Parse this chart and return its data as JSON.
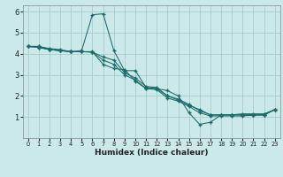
{
  "title": "",
  "xlabel": "Humidex (Indice chaleur)",
  "background_color": "#cce9e9",
  "line_color": "#1a6b6b",
  "grid_color": "#aacccc",
  "xlim": [
    -0.5,
    23.5
  ],
  "ylim": [
    0,
    6.3
  ],
  "xticks": [
    0,
    1,
    2,
    3,
    4,
    5,
    6,
    7,
    8,
    9,
    10,
    11,
    12,
    13,
    14,
    15,
    16,
    17,
    18,
    19,
    20,
    21,
    22,
    23
  ],
  "yticks": [
    1,
    2,
    3,
    4,
    5,
    6
  ],
  "series": [
    {
      "x": [
        0,
        1,
        2,
        3,
        4,
        5,
        6,
        7,
        8,
        9,
        10,
        11,
        12,
        13,
        14,
        15,
        16,
        17,
        18,
        19,
        20,
        21,
        22,
        23
      ],
      "y": [
        4.35,
        4.35,
        4.25,
        4.2,
        4.1,
        4.15,
        5.85,
        5.9,
        4.15,
        3.2,
        3.2,
        2.4,
        2.35,
        2.25,
        2.0,
        1.2,
        0.65,
        0.75,
        1.1,
        1.1,
        1.15,
        1.15,
        1.15,
        1.35
      ]
    },
    {
      "x": [
        0,
        1,
        2,
        3,
        4,
        5,
        6,
        7,
        8,
        9,
        10,
        11,
        12,
        13,
        14,
        15,
        16,
        17,
        18,
        19,
        20,
        21,
        22,
        23
      ],
      "y": [
        4.35,
        4.35,
        4.2,
        4.15,
        4.1,
        4.1,
        4.1,
        3.5,
        3.3,
        3.25,
        2.7,
        2.35,
        2.35,
        2.0,
        1.8,
        1.55,
        1.35,
        1.1,
        1.1,
        1.1,
        1.1,
        1.1,
        1.1,
        1.35
      ]
    },
    {
      "x": [
        0,
        1,
        2,
        3,
        4,
        5,
        6,
        7,
        8,
        9,
        10,
        11,
        12,
        13,
        14,
        15,
        16,
        17,
        18,
        19,
        20,
        21,
        22,
        23
      ],
      "y": [
        4.35,
        4.3,
        4.2,
        4.15,
        4.1,
        4.1,
        4.08,
        3.7,
        3.5,
        3.0,
        2.75,
        2.35,
        2.3,
        1.9,
        1.75,
        1.5,
        1.2,
        1.05,
        1.05,
        1.05,
        1.05,
        1.08,
        1.1,
        1.35
      ]
    },
    {
      "x": [
        0,
        1,
        2,
        3,
        4,
        5,
        6,
        7,
        8,
        9,
        10,
        11,
        12,
        13,
        14,
        15,
        16,
        17,
        18,
        19,
        20,
        21,
        22,
        23
      ],
      "y": [
        4.35,
        4.3,
        4.2,
        4.15,
        4.1,
        4.1,
        4.08,
        3.85,
        3.7,
        3.1,
        2.85,
        2.45,
        2.4,
        2.0,
        1.85,
        1.6,
        1.3,
        1.1,
        1.1,
        1.1,
        1.1,
        1.1,
        1.1,
        1.35
      ]
    }
  ]
}
